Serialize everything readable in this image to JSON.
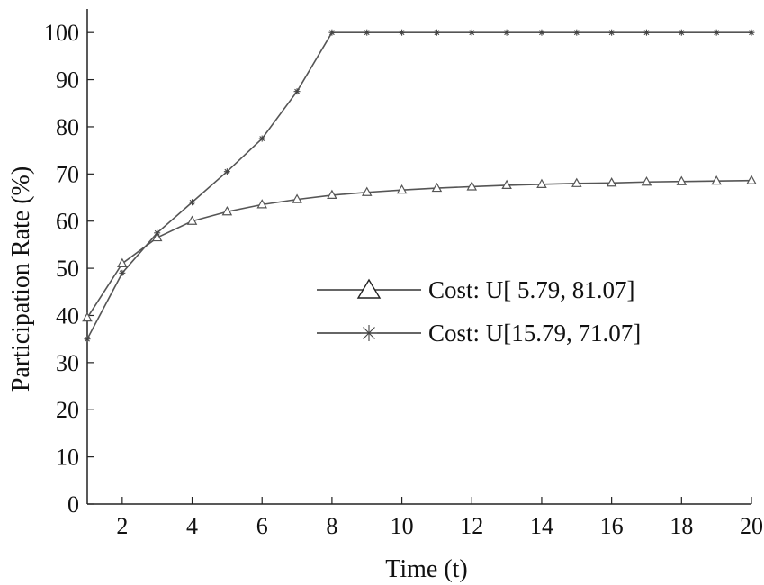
{
  "chart_data": {
    "type": "line",
    "title": "",
    "xlabel": "Time (t)",
    "ylabel": "Participation Rate (%)",
    "xlim": [
      1,
      20
    ],
    "ylim": [
      0,
      105
    ],
    "x_ticks": [
      2,
      4,
      6,
      8,
      10,
      12,
      14,
      16,
      18,
      20
    ],
    "y_ticks": [
      0,
      10,
      20,
      30,
      40,
      50,
      60,
      70,
      80,
      90,
      100
    ],
    "grid": false,
    "legend_position": "center-right",
    "x": [
      1,
      2,
      3,
      4,
      5,
      6,
      7,
      8,
      9,
      10,
      11,
      12,
      13,
      14,
      15,
      16,
      17,
      18,
      19,
      20
    ],
    "series": [
      {
        "name": "Cost: U[ 5.79, 81.07]",
        "marker": "triangle",
        "color": "#555555",
        "values": [
          39.5,
          51,
          56.5,
          60,
          62,
          63.5,
          64.6,
          65.5,
          66.1,
          66.6,
          67,
          67.3,
          67.6,
          67.8,
          68,
          68.1,
          68.3,
          68.4,
          68.5,
          68.6
        ]
      },
      {
        "name": "Cost: U[15.79, 71.07]",
        "marker": "asterisk",
        "color": "#555555",
        "values": [
          35,
          49,
          57.5,
          64,
          70.5,
          77.5,
          87.5,
          100,
          100,
          100,
          100,
          100,
          100,
          100,
          100,
          100,
          100,
          100,
          100,
          100
        ]
      }
    ]
  }
}
